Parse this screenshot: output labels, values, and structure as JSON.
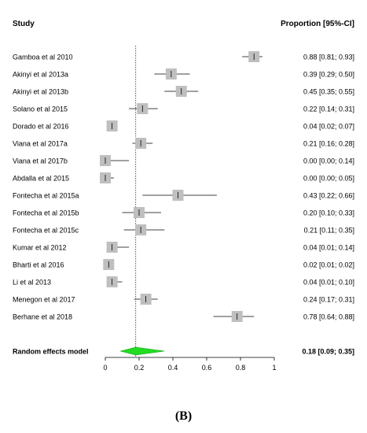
{
  "panel_label": "(B)",
  "colors": {
    "box": "#bfbfbf",
    "diamond": "#22dd22",
    "line": "#000000"
  },
  "chart_data": {
    "type": "forest",
    "header_left": "Study",
    "header_right": "Proportion [95%-CI]",
    "xlim": [
      0,
      1
    ],
    "x_ticks": [
      0,
      0.2,
      0.4,
      0.6,
      0.8,
      1
    ],
    "x_tick_labels": [
      "0",
      "0.2",
      "0.4",
      "0.6",
      "0.8",
      "1"
    ],
    "reference_line": 0.18,
    "studies": [
      {
        "name": "Gamboa et al 2010",
        "estimate": 0.88,
        "lower": 0.81,
        "upper": 0.93,
        "ci_text": "0.88 [0.81; 0.93]"
      },
      {
        "name": "Akinyi et al 2013a",
        "estimate": 0.39,
        "lower": 0.29,
        "upper": 0.5,
        "ci_text": "0.39 [0.29; 0.50]"
      },
      {
        "name": "Akinyi et al 2013b",
        "estimate": 0.45,
        "lower": 0.35,
        "upper": 0.55,
        "ci_text": "0.45 [0.35; 0.55]"
      },
      {
        "name": "Solano et al 2015",
        "estimate": 0.22,
        "lower": 0.14,
        "upper": 0.31,
        "ci_text": "0.22 [0.14; 0.31]"
      },
      {
        "name": "Dorado et al 2016",
        "estimate": 0.04,
        "lower": 0.02,
        "upper": 0.07,
        "ci_text": "0.04 [0.02; 0.07]"
      },
      {
        "name": "Viana et al 2017a",
        "estimate": 0.21,
        "lower": 0.16,
        "upper": 0.28,
        "ci_text": "0.21 [0.16; 0.28]"
      },
      {
        "name": "Viana et al 2017b",
        "estimate": 0.0,
        "lower": 0.0,
        "upper": 0.14,
        "ci_text": "0.00 [0.00; 0.14]"
      },
      {
        "name": "Abdalla et al 2015",
        "estimate": 0.0,
        "lower": 0.0,
        "upper": 0.05,
        "ci_text": "0.00 [0.00; 0.05]"
      },
      {
        "name": "Fontecha et al 2015a",
        "estimate": 0.43,
        "lower": 0.22,
        "upper": 0.66,
        "ci_text": "0.43 [0.22; 0.66]"
      },
      {
        "name": "Fontecha et al 2015b",
        "estimate": 0.2,
        "lower": 0.1,
        "upper": 0.33,
        "ci_text": "0.20 [0.10; 0.33]"
      },
      {
        "name": "Fontecha et al 2015c",
        "estimate": 0.21,
        "lower": 0.11,
        "upper": 0.35,
        "ci_text": "0.21 [0.11; 0.35]"
      },
      {
        "name": "Kumar et al 2012",
        "estimate": 0.04,
        "lower": 0.01,
        "upper": 0.14,
        "ci_text": "0.04 [0.01; 0.14]"
      },
      {
        "name": "Bharti et al 2016",
        "estimate": 0.02,
        "lower": 0.01,
        "upper": 0.02,
        "ci_text": "0.02 [0.01; 0.02]"
      },
      {
        "name": "Li et al 2013",
        "estimate": 0.04,
        "lower": 0.01,
        "upper": 0.1,
        "ci_text": "0.04 [0.01; 0.10]"
      },
      {
        "name": "Menegon et al 2017",
        "estimate": 0.24,
        "lower": 0.17,
        "upper": 0.31,
        "ci_text": "0.24 [0.17; 0.31]"
      },
      {
        "name": "Berhane et al 2018",
        "estimate": 0.78,
        "lower": 0.64,
        "upper": 0.88,
        "ci_text": "0.78 [0.64; 0.88]"
      }
    ],
    "summary": {
      "name": "Random effects model",
      "estimate": 0.18,
      "lower": 0.09,
      "upper": 0.35,
      "ci_text": "0.18 [0.09; 0.35]"
    }
  }
}
